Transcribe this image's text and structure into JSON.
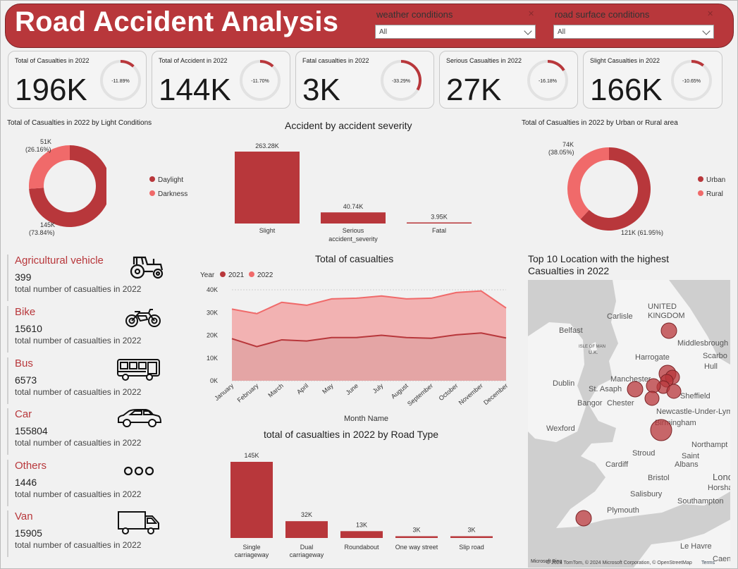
{
  "header": {
    "title": "Road Accident Analysis",
    "weather_label": "weather conditions",
    "weather_value": "All",
    "surface_label": "road surface conditions",
    "surface_value": "All"
  },
  "kpis": [
    {
      "label": "Total of Casualties in 2022",
      "value": "196K",
      "change": "-11.89%",
      "change_pct": 11.89
    },
    {
      "label": "Total of Accident in 2022",
      "value": "144K",
      "change": "-11.70%",
      "change_pct": 11.7
    },
    {
      "label": "Fatal casualties in 2022",
      "value": "3K",
      "change": "-33.29%",
      "change_pct": 33.29
    },
    {
      "label": "Serious Casualties in 2022",
      "value": "27K",
      "change": "-16.18%",
      "change_pct": 16.18
    },
    {
      "label": "Slight Casualties in 2022",
      "value": "166K",
      "change": "-10.65%",
      "change_pct": 10.65
    }
  ],
  "light": {
    "title": "Total of Casualties in 2022 by Light Conditions",
    "label_dark": "51K",
    "label_dark_pct": "(26.16%)",
    "label_day": "145K",
    "label_day_pct": "(73.84%)",
    "legend_day": "Daylight",
    "legend_dark": "Darkness"
  },
  "severity": {
    "title": "Accident by accident severity",
    "axis": "accident_severity",
    "labels": [
      "263.28K",
      "40.74K",
      "3.95K"
    ],
    "cats": [
      "Slight",
      "Serious",
      "Fatal"
    ]
  },
  "area": {
    "title": "Total of Casualties in 2022 by Urban or Rural area",
    "label_rural": "74K",
    "label_rural_pct": "(38.05%)",
    "label_urban": "121K (61.95%)",
    "legend_urban": "Urban",
    "legend_rural": "Rural"
  },
  "vehicles": [
    {
      "name": "Agricultural vehicle",
      "count": "399",
      "sub": "total number of casualties in 2022",
      "icon": "tractor-icon"
    },
    {
      "name": "Bike",
      "count": "15610",
      "sub": "total number of casualties in 2022",
      "icon": "motorbike-icon"
    },
    {
      "name": "Bus",
      "count": "6573",
      "sub": "total number of casualties in 2022",
      "icon": "bus-icon"
    },
    {
      "name": "Car",
      "count": "155804",
      "sub": "total number of casualties in 2022",
      "icon": "car-icon"
    },
    {
      "name": "Others",
      "count": "1446",
      "sub": "total number of casualties in 2022",
      "icon": "dots-icon"
    },
    {
      "name": "Van",
      "count": "15905",
      "sub": "total number of casualties in 2022",
      "icon": "van-icon"
    }
  ],
  "trend": {
    "title": "Total of casualties",
    "legend_title": "Year",
    "s2021": "2021",
    "s2022": "2022",
    "xlabel": "Month Name",
    "yticks": [
      "0K",
      "10K",
      "20K",
      "30K",
      "40K"
    ]
  },
  "roadtype": {
    "title": "total of casualties in 2022 by Road Type",
    "labels": [
      "145K",
      "32K",
      "13K",
      "3K",
      "3K"
    ],
    "cats_l1": [
      "Single",
      "Dual",
      "Roundabout",
      "One way street",
      "Slip road"
    ],
    "cats_l2": [
      "carriageway",
      "carriageway",
      "",
      "",
      ""
    ]
  },
  "map": {
    "title_l1": "Top 10 Location with the highest",
    "title_l2": "Casualties in 2022",
    "places": [
      "UNITED",
      "KINGDOM",
      "Carlisle",
      "Belfast",
      "ISLE OF MAN",
      "U.K.",
      "Middlesbrough",
      "Scarbo",
      "Hull",
      "Harrogate",
      "Dublin",
      "Manchester",
      "St. Asaph",
      "Sheffield",
      "Bangor",
      "Chester",
      "Newcastle-Under-Lyme",
      "Birmingham",
      "Wexford",
      "Northampt",
      "Stroud",
      "Saint",
      "Albans",
      "Cardiff",
      "Lond",
      "Bristol",
      "Horsha",
      "Salisbury",
      "Southampton",
      "Plymouth",
      "Le Havre",
      "Caen"
    ],
    "attribution": "© 2024 TomTom, © 2024 Microsoft Corporation, © OpenStreetMap",
    "terms": "Terms",
    "bing": "Microsoft Bing"
  },
  "colors": {
    "accent": "#b8373b",
    "accent_light": "#f06a6a",
    "area2022": "#f2b2b2"
  },
  "chart_data": [
    {
      "type": "pie",
      "title": "Total of Casualties in 2022 by Light Conditions",
      "categories": [
        "Daylight",
        "Darkness"
      ],
      "values": [
        145,
        51
      ],
      "percent": [
        73.84,
        26.16
      ],
      "legend": "right"
    },
    {
      "type": "bar",
      "title": "Accident by accident severity",
      "xlabel": "accident_severity",
      "categories": [
        "Slight",
        "Serious",
        "Fatal"
      ],
      "values": [
        263.28,
        40.74,
        3.95
      ]
    },
    {
      "type": "pie",
      "title": "Total of Casualties in 2022 by Urban or Rural area",
      "categories": [
        "Urban",
        "Rural"
      ],
      "values": [
        121,
        74
      ],
      "percent": [
        61.95,
        38.05
      ],
      "legend": "right"
    },
    {
      "type": "area",
      "title": "Total of casualties",
      "xlabel": "Month Name",
      "legend_title": "Year",
      "categories": [
        "January",
        "February",
        "March",
        "April",
        "May",
        "June",
        "July",
        "August",
        "September",
        "October",
        "November",
        "December"
      ],
      "series": [
        {
          "name": "2021",
          "values": [
            18.5,
            15,
            18,
            17.5,
            19,
            19,
            20,
            19,
            18.7,
            20.2,
            21,
            18.8
          ]
        },
        {
          "name": "2022",
          "values": [
            31.5,
            29.5,
            34.5,
            33.2,
            36,
            36.3,
            37.3,
            36,
            36.3,
            38.8,
            39.5,
            32
          ]
        }
      ],
      "ylim": [
        0,
        40
      ],
      "grid": true,
      "legend": "top-left"
    },
    {
      "type": "bar",
      "title": "total of casualties in 2022 by Road Type",
      "categories": [
        "Single carriageway",
        "Dual carriageway",
        "Roundabout",
        "One way street",
        "Slip road"
      ],
      "values": [
        145,
        32,
        13,
        3,
        3
      ]
    }
  ]
}
